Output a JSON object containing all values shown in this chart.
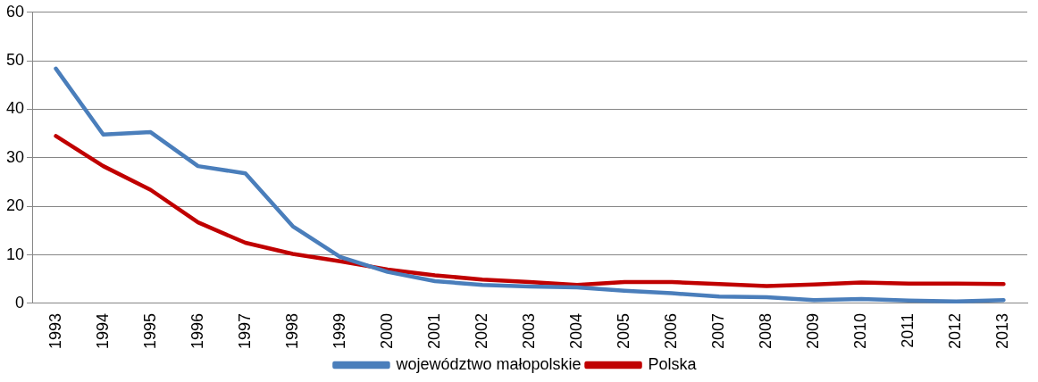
{
  "chart_data": {
    "type": "line",
    "categories": [
      "1993",
      "1994",
      "1995",
      "1996",
      "1997",
      "1998",
      "1999",
      "2000",
      "2001",
      "2002",
      "2003",
      "2004",
      "2005",
      "2006",
      "2007",
      "2008",
      "2009",
      "2010",
      "2011",
      "2012",
      "2013"
    ],
    "series": [
      {
        "name": "województwo małopolskie",
        "color": "#4a7ebb",
        "values": [
          48.4,
          34.8,
          35.3,
          28.3,
          26.8,
          15.9,
          9.6,
          6.5,
          4.6,
          3.8,
          3.5,
          3.3,
          2.6,
          2.1,
          1.4,
          1.3,
          0.7,
          0.9,
          0.6,
          0.4,
          0.7
        ]
      },
      {
        "name": "Polska",
        "color": "#c00000",
        "values": [
          34.5,
          28.3,
          23.4,
          16.7,
          12.5,
          10.2,
          8.7,
          7.0,
          5.8,
          4.9,
          4.4,
          3.8,
          4.4,
          4.4,
          4.0,
          3.6,
          3.9,
          4.3,
          4.1,
          4.1,
          4.0
        ]
      }
    ],
    "ylim": [
      0,
      60
    ],
    "yticks": [
      0,
      10,
      20,
      30,
      40,
      50,
      60
    ],
    "grid": "y",
    "legend": "bottom",
    "marker": "none",
    "line_style": "solid"
  }
}
